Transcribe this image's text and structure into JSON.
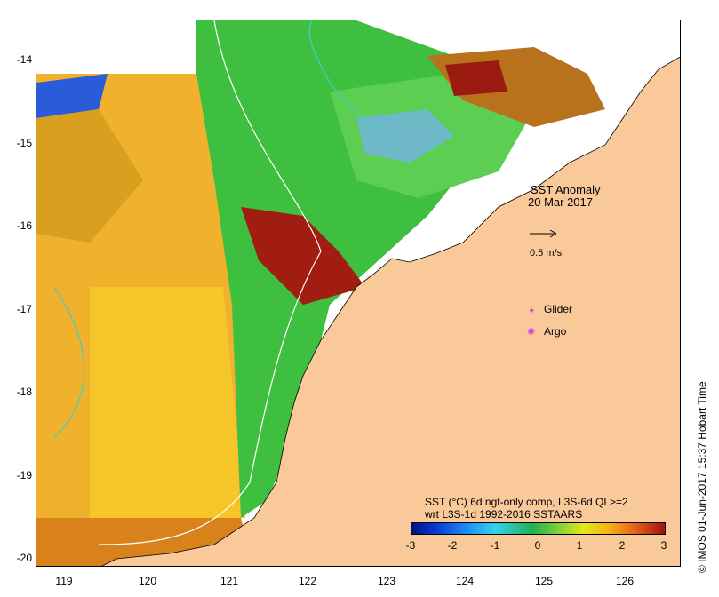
{
  "map": {
    "title": "SST Anomaly",
    "date": "20 Mar 2017",
    "vector_scale_label": "0.5 m/s",
    "legend": [
      {
        "label": "Glider",
        "symbol": "✦",
        "color": "#e03ae0"
      },
      {
        "label": "Argo",
        "symbol": "✺",
        "color": "#e03ae0"
      }
    ],
    "description_line1": "SST (°C) 6d ngt-only comp, L3S-6d QL>=2",
    "description_line2": "wrt L3S-1d 1992-2016 SSTAARS",
    "credit": "© IMOS 01-Jun-2017 15:37 Hobart Time",
    "lat_ticks": [
      "-14",
      "-15",
      "-16",
      "-17",
      "-18",
      "-19",
      "-20"
    ],
    "lon_ticks": [
      "119",
      "120",
      "121",
      "122",
      "123",
      "124",
      "125",
      "126"
    ],
    "colorbar_ticks": [
      "-3",
      "-2",
      "-1",
      "0",
      "1",
      "2",
      "3"
    ],
    "land_color": "#f9c99a",
    "colorbar_colors": [
      "#000f7f",
      "#1e8ef0",
      "#2fd3f0",
      "#22b04a",
      "#e6e61c",
      "#f2b31a",
      "#a01010"
    ]
  }
}
